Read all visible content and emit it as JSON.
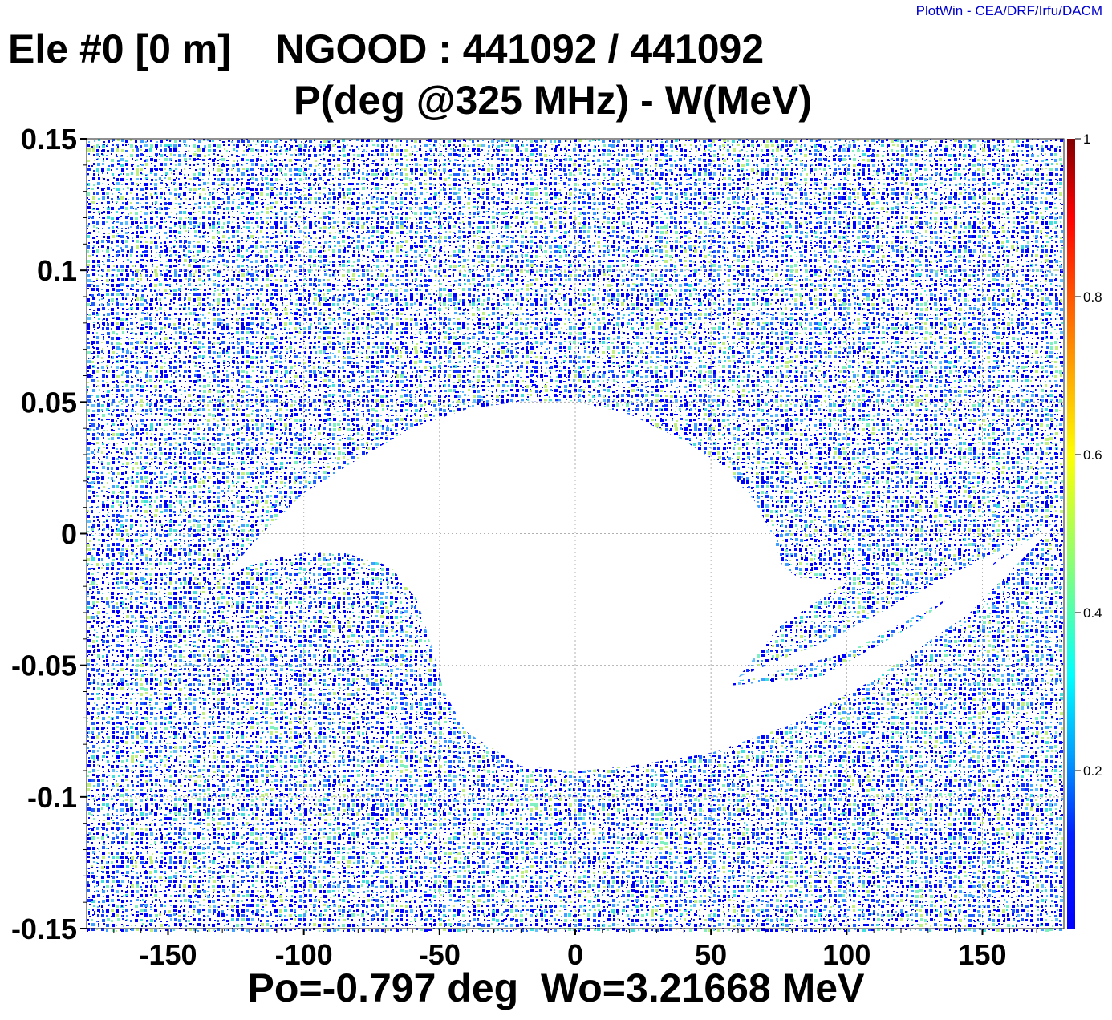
{
  "credit": "PlotWin - CEA/DRF/Irfu/DACM",
  "header": {
    "title": "Ele #0 [0 m]    NGOOD : 441092 / 441092",
    "subtitle": "P(deg @325 MHz) - W(MeV)"
  },
  "footer": {
    "text": "Po=-0.797 deg  Wo=3.21668 MeV"
  },
  "chart_data": {
    "type": "heatmap",
    "xlim": [
      -180,
      180
    ],
    "ylim": [
      -0.15,
      0.15
    ],
    "x_ticks": [
      -150,
      -100,
      -50,
      0,
      50,
      100,
      150
    ],
    "x_tick_labels": [
      "-150",
      "-100",
      "-50",
      "0",
      "50",
      "100",
      "150"
    ],
    "y_ticks": [
      0.15,
      0.1,
      0.05,
      0,
      -0.05,
      -0.1,
      -0.15
    ],
    "y_tick_labels": [
      "0.15",
      "0.1",
      "0.05",
      "0",
      "-0.05",
      "-0.1",
      "-0.15"
    ],
    "grid": true,
    "colorbar": {
      "range": [
        0,
        1
      ],
      "ticks": [
        1,
        0.8,
        0.6,
        0.4,
        0.2
      ],
      "tick_labels": [
        "1",
        "0.8",
        "0.6",
        "0.4",
        "0.2"
      ],
      "colormap": [
        "#0000ff",
        "#00a0ff",
        "#00ffff",
        "#80ff80",
        "#ffff00",
        "#ff8000",
        "#ff0000",
        "#800000"
      ]
    },
    "empty_region_outline": [
      [
        -128,
        -0.015
      ],
      [
        -115,
        0.0
      ],
      [
        -100,
        0.015
      ],
      [
        -80,
        0.028
      ],
      [
        -60,
        0.04
      ],
      [
        -40,
        0.047
      ],
      [
        -20,
        0.05
      ],
      [
        0,
        0.05
      ],
      [
        20,
        0.045
      ],
      [
        40,
        0.035
      ],
      [
        55,
        0.025
      ],
      [
        66,
        0.012
      ],
      [
        72,
        0.0
      ],
      [
        76,
        -0.012
      ],
      [
        82,
        -0.017
      ],
      [
        100,
        -0.018
      ],
      [
        75,
        -0.035
      ],
      [
        57,
        -0.058
      ],
      [
        90,
        -0.055
      ],
      [
        125,
        -0.035
      ],
      [
        150,
        -0.015
      ],
      [
        178,
        0.005
      ],
      [
        145,
        -0.03
      ],
      [
        110,
        -0.055
      ],
      [
        80,
        -0.072
      ],
      [
        50,
        -0.083
      ],
      [
        20,
        -0.088
      ],
      [
        0,
        -0.09
      ],
      [
        -20,
        -0.088
      ],
      [
        -40,
        -0.075
      ],
      [
        -48,
        -0.06
      ],
      [
        -52,
        -0.045
      ],
      [
        -58,
        -0.025
      ],
      [
        -68,
        -0.012
      ],
      [
        -85,
        -0.007
      ],
      [
        -100,
        -0.007
      ],
      [
        -115,
        -0.01
      ]
    ],
    "empty_sliver": [
      [
        55,
        -0.057
      ],
      [
        95,
        -0.04
      ],
      [
        140,
        -0.015
      ],
      [
        160,
        -0.005
      ],
      [
        145,
        -0.02
      ],
      [
        100,
        -0.045
      ]
    ],
    "point_count": 441092
  }
}
